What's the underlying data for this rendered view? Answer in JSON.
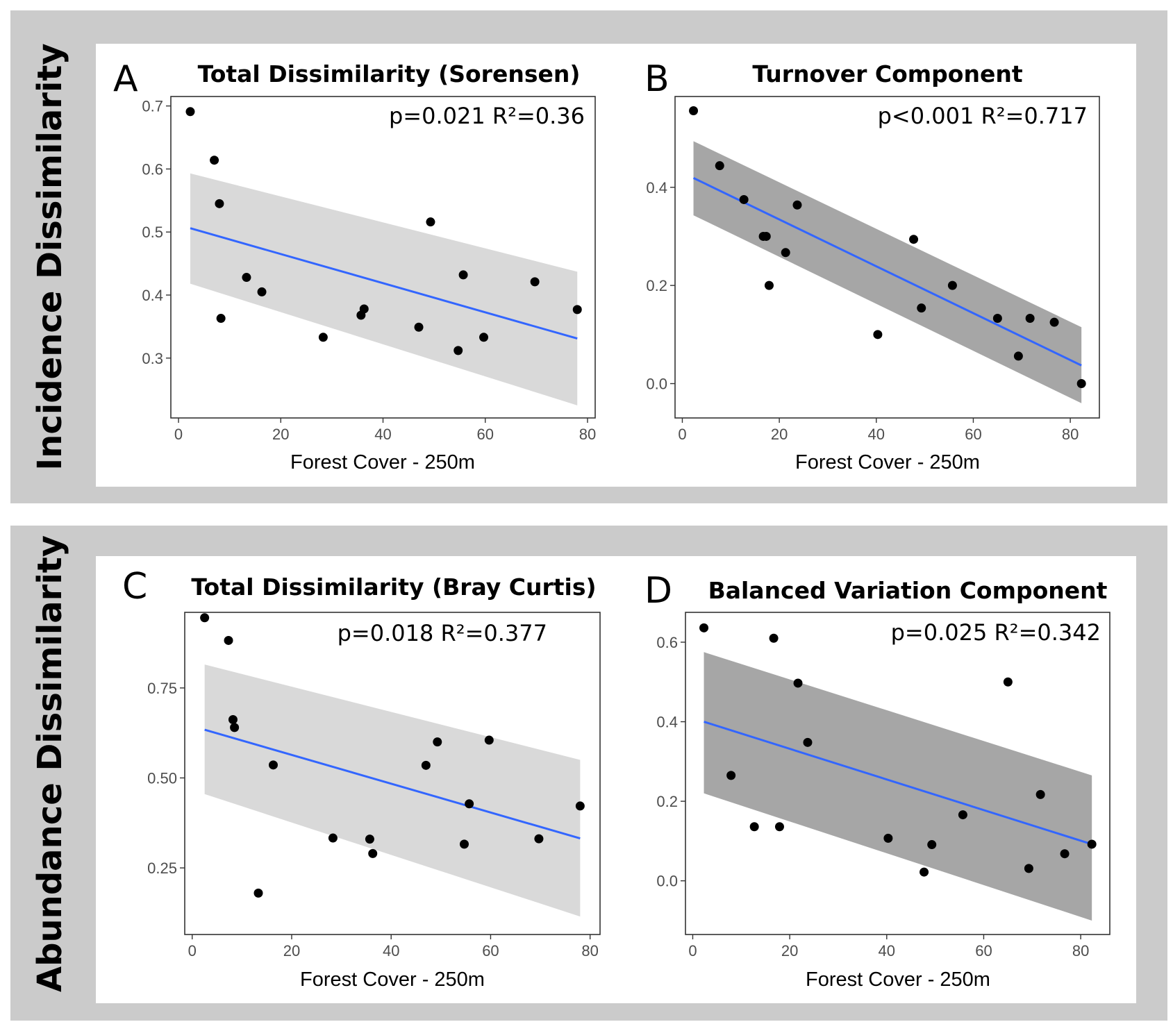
{
  "figure": {
    "row_labels": [
      "Incidence Dissimilarity",
      "Abundance Dissimilarity"
    ],
    "colors": {
      "band": "#cbcbcb",
      "panel": "#ffffff",
      "point": "#000000",
      "line": "#3366ff",
      "ribbon_light": "#d9d9d9",
      "ribbon_dark": "#a6a6a6"
    }
  },
  "chart_data": [
    {
      "type": "scatter",
      "letter": "A",
      "title": "Total Dissimilarity (Sorensen)",
      "annotation": "p=0.021 R²=0.36",
      "xlabel": "Forest Cover - 250m",
      "ylabel": "",
      "xlim": [
        -1.5,
        81.5
      ],
      "ylim": [
        0.205,
        0.715
      ],
      "xticks": [
        0,
        20,
        40,
        60,
        80
      ],
      "yticks": [
        0.3,
        0.4,
        0.5,
        0.6,
        0.7
      ],
      "ytick_labels": [
        "0.3",
        "0.4",
        "0.5",
        "0.6",
        "0.7"
      ],
      "ribbon_shade": "light",
      "points": {
        "x": [
          2.3,
          7.0,
          8.0,
          8.3,
          13.3,
          16.3,
          28.3,
          35.7,
          36.3,
          47.0,
          49.3,
          54.7,
          55.7,
          59.7,
          69.7,
          78.0
        ],
        "y": [
          0.691,
          0.614,
          0.545,
          0.363,
          0.428,
          0.405,
          0.333,
          0.368,
          0.378,
          0.349,
          0.516,
          0.312,
          0.432,
          0.333,
          0.421,
          0.377
        ]
      },
      "fit": {
        "x": [
          2.3,
          78.0
        ],
        "y": [
          0.506,
          0.331
        ]
      },
      "ribbon": {
        "x": [
          2.3,
          78.0
        ],
        "upper": [
          0.593,
          0.437
        ],
        "lower": [
          0.418,
          0.225
        ]
      }
    },
    {
      "type": "scatter",
      "letter": "B",
      "title": "Turnover Component",
      "annotation": "p<0.001 R²=0.717",
      "xlabel": "Forest Cover - 250m",
      "ylabel": "",
      "xlim": [
        -1.5,
        86.0
      ],
      "ylim": [
        -0.07,
        0.585
      ],
      "xticks": [
        0,
        20,
        40,
        60,
        80
      ],
      "yticks": [
        0.0,
        0.2,
        0.4
      ],
      "ytick_labels": [
        "0.0",
        "0.2",
        "0.4"
      ],
      "ribbon_shade": "dark",
      "points": {
        "x": [
          2.3,
          7.7,
          12.7,
          16.7,
          17.3,
          17.9,
          21.3,
          23.7,
          40.3,
          47.7,
          49.3,
          55.7,
          65.0,
          69.3,
          71.7,
          76.7,
          82.3
        ],
        "y": [
          0.556,
          0.444,
          0.375,
          0.3,
          0.3,
          0.2,
          0.267,
          0.364,
          0.1,
          0.294,
          0.154,
          0.2,
          0.133,
          0.056,
          0.133,
          0.125,
          0.0
        ]
      },
      "fit": {
        "x": [
          2.3,
          82.3
        ],
        "y": [
          0.419,
          0.037
        ]
      },
      "ribbon": {
        "x": [
          2.3,
          82.3
        ],
        "upper": [
          0.494,
          0.115
        ],
        "lower": [
          0.343,
          -0.04
        ]
      }
    },
    {
      "type": "scatter",
      "letter": "C",
      "title": "Total Dissimilarity (Bray Curtis)",
      "annotation": "p=0.018 R²=0.377",
      "xlabel": "Forest Cover - 250m",
      "ylabel": "",
      "xlim": [
        -1.5,
        82.0
      ],
      "ylim": [
        0.065,
        0.96
      ],
      "xticks": [
        0,
        20,
        40,
        60,
        80
      ],
      "yticks": [
        0.25,
        0.5,
        0.75
      ],
      "ytick_labels": [
        "0.25",
        "0.50",
        "0.75"
      ],
      "ribbon_shade": "light",
      "points": {
        "x": [
          2.5,
          7.3,
          8.2,
          8.5,
          13.3,
          16.3,
          28.3,
          35.7,
          36.3,
          47.0,
          49.3,
          54.7,
          55.7,
          59.7,
          69.7,
          78.0
        ],
        "y": [
          0.945,
          0.882,
          0.662,
          0.64,
          0.18,
          0.536,
          0.333,
          0.33,
          0.29,
          0.535,
          0.6,
          0.316,
          0.428,
          0.605,
          0.331,
          0.422
        ]
      },
      "fit": {
        "x": [
          2.5,
          78.0
        ],
        "y": [
          0.634,
          0.332
        ]
      },
      "ribbon": {
        "x": [
          2.5,
          78.0
        ],
        "upper": [
          0.815,
          0.55
        ],
        "lower": [
          0.455,
          0.115
        ]
      }
    },
    {
      "type": "scatter",
      "letter": "D",
      "title": "Balanced Variation Component",
      "annotation": "p=0.025 R²=0.342",
      "xlabel": "Forest Cover - 250m",
      "ylabel": "",
      "xlim": [
        -1.5,
        86.0
      ],
      "ylim": [
        -0.135,
        0.675
      ],
      "xticks": [
        0,
        20,
        40,
        60,
        80
      ],
      "yticks": [
        0.0,
        0.2,
        0.4,
        0.6
      ],
      "ytick_labels": [
        "0.0",
        "0.2",
        "0.4",
        "0.6"
      ],
      "ribbon_shade": "dark",
      "points": {
        "x": [
          2.3,
          7.9,
          12.7,
          16.7,
          17.9,
          21.7,
          23.7,
          40.3,
          47.7,
          49.3,
          55.7,
          65.0,
          69.3,
          71.7,
          76.7,
          82.3
        ],
        "y": [
          0.636,
          0.265,
          0.136,
          0.61,
          0.136,
          0.497,
          0.348,
          0.107,
          0.022,
          0.091,
          0.166,
          0.5,
          0.031,
          0.217,
          0.068,
          0.092
        ]
      },
      "fit": {
        "x": [
          2.3,
          82.3
        ],
        "y": [
          0.4,
          0.092
        ]
      },
      "ribbon": {
        "x": [
          2.3,
          82.3
        ],
        "upper": [
          0.575,
          0.265
        ],
        "lower": [
          0.22,
          -0.1
        ]
      }
    }
  ]
}
